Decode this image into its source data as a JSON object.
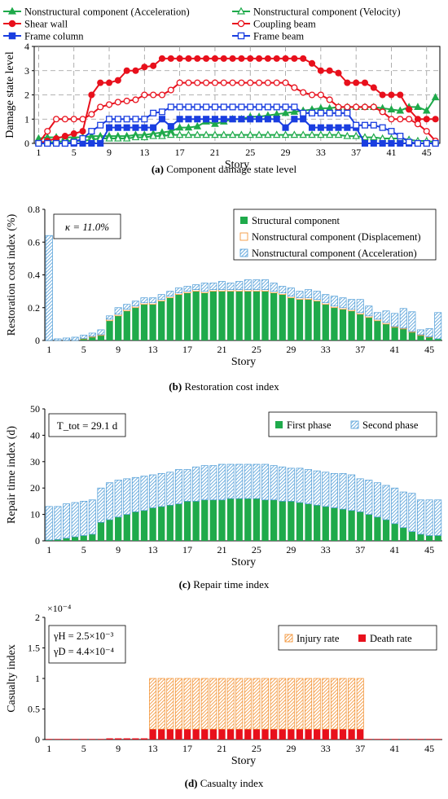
{
  "chart_data": [
    {
      "type": "line",
      "caption_letter": "(a)",
      "caption_text": " Component damage state level",
      "xlabel": "Story",
      "ylabel": "Damage state level",
      "xticks": [
        "1",
        "5",
        "9",
        "13",
        "17",
        "21",
        "25",
        "29",
        "33",
        "37",
        "41",
        "45"
      ],
      "yticks": [
        "0",
        "1",
        "2",
        "3",
        "4"
      ],
      "ylim": [
        0,
        4
      ],
      "grid": true,
      "legend_position": "top",
      "stories": 46,
      "series": [
        {
          "name": "Nonstructural component (Acceleration)",
          "color": "#1faa4b",
          "marker": "triangle",
          "fill": true,
          "values": [
            0.2,
            0.25,
            0.25,
            0.25,
            0.25,
            0.25,
            0.3,
            0.3,
            0.3,
            0.3,
            0.3,
            0.35,
            0.35,
            0.4,
            0.45,
            0.5,
            0.65,
            0.65,
            0.7,
            0.9,
            0.8,
            0.9,
            1.0,
            1.0,
            1.1,
            1.1,
            1.15,
            1.2,
            1.25,
            1.3,
            1.35,
            1.4,
            1.45,
            1.45,
            1.5,
            1.5,
            1.5,
            1.5,
            1.5,
            1.45,
            1.4,
            1.35,
            1.5,
            1.5,
            1.35,
            1.9
          ]
        },
        {
          "name": "Nonstructural component (Velocity)",
          "color": "#1faa4b",
          "marker": "triangle",
          "fill": false,
          "values": [
            0.05,
            0.05,
            0.05,
            0.1,
            0.1,
            0.1,
            0.15,
            0.2,
            0.2,
            0.2,
            0.2,
            0.25,
            0.25,
            0.3,
            0.3,
            0.35,
            0.35,
            0.35,
            0.35,
            0.35,
            0.35,
            0.35,
            0.35,
            0.35,
            0.35,
            0.35,
            0.35,
            0.35,
            0.35,
            0.35,
            0.35,
            0.35,
            0.35,
            0.35,
            0.35,
            0.3,
            0.3,
            0.25,
            0.25,
            0.2,
            0.2,
            0.2,
            0.15,
            0.1,
            0.1,
            0.05
          ]
        },
        {
          "name": "Shear wall",
          "color": "#e8101c",
          "marker": "circle",
          "fill": true,
          "values": [
            0,
            0.1,
            0.2,
            0.3,
            0.4,
            0.5,
            2.0,
            2.5,
            2.5,
            2.6,
            3.0,
            3.0,
            3.15,
            3.2,
            3.5,
            3.5,
            3.5,
            3.5,
            3.5,
            3.5,
            3.5,
            3.5,
            3.5,
            3.5,
            3.5,
            3.5,
            3.5,
            3.5,
            3.5,
            3.5,
            3.5,
            3.3,
            3.0,
            3.0,
            2.9,
            2.5,
            2.5,
            2.5,
            2.3,
            2.0,
            2.0,
            2.0,
            1.4,
            1.0,
            1.0,
            1.0
          ]
        },
        {
          "name": "Coupling beam",
          "color": "#e8101c",
          "marker": "circle",
          "fill": false,
          "values": [
            0,
            0.5,
            1.0,
            1.0,
            1.0,
            1.0,
            1.2,
            1.5,
            1.6,
            1.7,
            1.75,
            1.8,
            2.0,
            2.0,
            2.0,
            2.2,
            2.5,
            2.5,
            2.5,
            2.5,
            2.5,
            2.5,
            2.5,
            2.5,
            2.5,
            2.5,
            2.5,
            2.5,
            2.5,
            2.3,
            2.1,
            2.0,
            2.0,
            1.8,
            1.5,
            1.5,
            1.5,
            1.5,
            1.5,
            1.3,
            1.0,
            1.0,
            1.0,
            0.8,
            0.5,
            0.1
          ]
        },
        {
          "name": "Frame column",
          "color": "#1a3ee0",
          "marker": "square",
          "fill": true,
          "values": [
            0,
            0,
            0,
            0,
            0,
            0,
            0,
            0,
            0.65,
            0.65,
            0.65,
            0.65,
            0.65,
            0.65,
            1.0,
            0.7,
            1.0,
            1.0,
            1.0,
            1.0,
            1.0,
            1.0,
            1.0,
            1.0,
            1.0,
            1.0,
            1.0,
            1.0,
            0.65,
            1.0,
            1.0,
            0.65,
            0.65,
            0.65,
            0.65,
            0.65,
            0.65,
            0,
            0,
            0,
            0,
            0,
            0,
            0,
            0,
            0
          ]
        },
        {
          "name": "Frame beam",
          "color": "#1a3ee0",
          "marker": "square",
          "fill": false,
          "values": [
            0,
            0,
            0,
            0,
            0.05,
            0.2,
            0.5,
            0.75,
            1.0,
            1.0,
            1.0,
            1.0,
            1.0,
            1.25,
            1.3,
            1.5,
            1.5,
            1.5,
            1.5,
            1.5,
            1.5,
            1.5,
            1.5,
            1.5,
            1.5,
            1.5,
            1.5,
            1.5,
            1.5,
            1.5,
            1.25,
            1.25,
            1.25,
            1.25,
            1.25,
            1.25,
            0.75,
            0.75,
            0.75,
            0.65,
            0.5,
            0.3,
            0.05,
            0,
            0,
            0
          ]
        }
      ]
    },
    {
      "type": "bar",
      "stacked": true,
      "caption_letter": "(b)",
      "caption_text": " Restoration cost index",
      "xlabel": "Story",
      "ylabel": "Restoration cost index (%)",
      "xticks": [
        "1",
        "5",
        "9",
        "13",
        "17",
        "21",
        "25",
        "29",
        "33",
        "37",
        "41",
        "45"
      ],
      "yticks": [
        "0",
        "0.2",
        "0.4",
        "0.6",
        "0.8"
      ],
      "ylim": [
        0,
        0.8
      ],
      "annotation": "κ = 11.0%",
      "legend_position": "top-right",
      "series": [
        {
          "name": "Structural component",
          "color": "#1faa4b",
          "pattern": "solid",
          "values": [
            0,
            0,
            0,
            0,
            0.01,
            0.02,
            0.03,
            0.12,
            0.15,
            0.18,
            0.2,
            0.22,
            0.22,
            0.24,
            0.26,
            0.28,
            0.29,
            0.3,
            0.29,
            0.3,
            0.3,
            0.3,
            0.3,
            0.3,
            0.3,
            0.3,
            0.29,
            0.28,
            0.26,
            0.25,
            0.25,
            0.24,
            0.22,
            0.2,
            0.19,
            0.18,
            0.16,
            0.14,
            0.12,
            0.1,
            0.08,
            0.07,
            0.05,
            0.03,
            0.02,
            0.01
          ]
        },
        {
          "name": "Nonstructural component (Displacement)",
          "color": "#f28c28",
          "pattern": "hollow",
          "values": [
            0,
            0,
            0,
            0,
            0.002,
            0.005,
            0.005,
            0.01,
            0.01,
            0.01,
            0.01,
            0.01,
            0.01,
            0.01,
            0.01,
            0.01,
            0.01,
            0.01,
            0.01,
            0.01,
            0.01,
            0.01,
            0.01,
            0.01,
            0.01,
            0.01,
            0.01,
            0.01,
            0.01,
            0.01,
            0.01,
            0.01,
            0.01,
            0.01,
            0.01,
            0.01,
            0.01,
            0.01,
            0.01,
            0.01,
            0.005,
            0.005,
            0.005,
            0.005,
            0.002,
            0
          ]
        },
        {
          "name": "Nonstructural component (Acceleration)",
          "color": "#4b9ad6",
          "pattern": "hatch",
          "values": [
            0.64,
            0.01,
            0.015,
            0.02,
            0.02,
            0.02,
            0.03,
            0.02,
            0.04,
            0.03,
            0.03,
            0.03,
            0.03,
            0.03,
            0.03,
            0.03,
            0.03,
            0.03,
            0.05,
            0.04,
            0.05,
            0.04,
            0.05,
            0.06,
            0.06,
            0.06,
            0.05,
            0.04,
            0.05,
            0.04,
            0.05,
            0.05,
            0.05,
            0.06,
            0.06,
            0.06,
            0.08,
            0.06,
            0.04,
            0.07,
            0.08,
            0.12,
            0.12,
            0.03,
            0.05,
            0.16
          ]
        }
      ]
    },
    {
      "type": "bar",
      "stacked": true,
      "caption_letter": "(c)",
      "caption_text": " Repair time index",
      "xlabel": "Story",
      "ylabel": "Repair time index (d)",
      "xticks": [
        "1",
        "5",
        "9",
        "13",
        "17",
        "21",
        "25",
        "29",
        "33",
        "37",
        "41",
        "45"
      ],
      "yticks": [
        "0",
        "10",
        "20",
        "30",
        "40",
        "50"
      ],
      "ylim": [
        0,
        50
      ],
      "annotation": "T_tot = 29.1 d",
      "legend_position": "top-right",
      "series": [
        {
          "name": "First phase",
          "color": "#1faa4b",
          "pattern": "solid",
          "values": [
            0.3,
            0.5,
            1,
            1.5,
            2,
            2.5,
            7,
            8,
            9,
            10,
            11,
            11.5,
            12.5,
            13,
            13.5,
            14,
            15,
            15,
            15.5,
            15.5,
            15.5,
            16,
            16,
            16,
            16,
            15.5,
            15.5,
            15,
            15,
            14.5,
            14,
            13.5,
            13,
            12.5,
            12,
            11.5,
            11,
            10,
            9,
            8,
            6.5,
            5,
            3.5,
            2.5,
            2,
            2
          ]
        },
        {
          "name": "Second phase",
          "color": "#4b9ad6",
          "pattern": "hatch",
          "values": [
            12.7,
            12.5,
            13,
            13,
            13,
            13,
            13,
            14,
            14,
            13.5,
            13,
            13,
            12.5,
            12.5,
            12.5,
            13,
            12,
            13,
            13,
            13,
            13.5,
            13,
            13,
            13,
            13,
            13.5,
            13,
            13,
            12.5,
            13,
            13,
            13,
            13,
            13,
            13.5,
            13.5,
            12.5,
            13,
            13,
            13,
            13.5,
            13.5,
            14.5,
            13,
            13.5,
            13.5
          ]
        }
      ]
    },
    {
      "type": "bar",
      "stacked": true,
      "caption_letter": "(d)",
      "caption_text": " Casualty index",
      "xlabel": "Story",
      "ylabel": "Casualty index",
      "multiplier": "×10⁻⁴",
      "xticks": [
        "1",
        "5",
        "9",
        "13",
        "17",
        "21",
        "25",
        "29",
        "33",
        "37",
        "41",
        "45"
      ],
      "yticks": [
        "0",
        "0.5",
        "1",
        "1.5",
        "2"
      ],
      "ylim": [
        0,
        2
      ],
      "annotation_lines": [
        "γH = 2.5×10⁻³",
        "γD = 4.4×10⁻⁴"
      ],
      "legend_position": "top-right",
      "series": [
        {
          "name": "Death rate",
          "color": "#e8101c",
          "pattern": "solid",
          "values": [
            0.01,
            0.01,
            0.01,
            0.01,
            0.01,
            0.01,
            0.01,
            0.02,
            0.02,
            0.02,
            0.02,
            0.02,
            0.17,
            0.17,
            0.17,
            0.17,
            0.17,
            0.17,
            0.17,
            0.17,
            0.17,
            0.17,
            0.17,
            0.17,
            0.17,
            0.17,
            0.17,
            0.17,
            0.17,
            0.17,
            0.17,
            0.17,
            0.17,
            0.17,
            0.17,
            0.17,
            0.17,
            0.01,
            0.01,
            0.01,
            0.01,
            0.01,
            0.01,
            0.01,
            0.01,
            0.01
          ]
        },
        {
          "name": "Injury rate",
          "color": "#f28c28",
          "pattern": "hatch",
          "values": [
            0,
            0,
            0,
            0,
            0,
            0,
            0,
            0,
            0,
            0,
            0,
            0,
            0.83,
            0.83,
            0.83,
            0.83,
            0.83,
            0.83,
            0.83,
            0.83,
            0.83,
            0.83,
            0.83,
            0.83,
            0.83,
            0.83,
            0.83,
            0.83,
            0.83,
            0.83,
            0.83,
            0.83,
            0.83,
            0.83,
            0.83,
            0.83,
            0.83,
            0,
            0,
            0,
            0,
            0,
            0,
            0,
            0,
            0
          ]
        }
      ]
    }
  ]
}
